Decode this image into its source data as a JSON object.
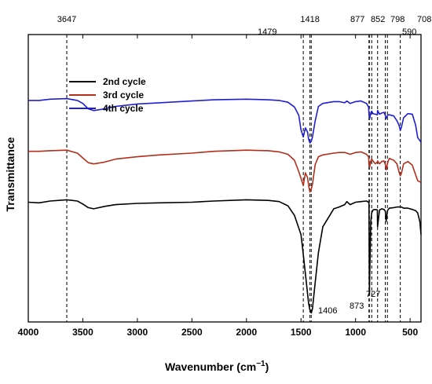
{
  "chart_data": {
    "type": "line",
    "xlabel": "Wavenumber (cm",
    "xlabel_sup": "−1",
    "xlabel_close": ")",
    "ylabel": "Transmittance",
    "xlim": [
      4000,
      400
    ],
    "x_reversed": true,
    "x_ticks": [
      4000,
      3500,
      3000,
      2500,
      2000,
      1500,
      1000,
      500
    ],
    "y_ticks_shown": false,
    "grid": false,
    "legend_position": "upper-left",
    "series": [
      {
        "name": "2nd cycle",
        "color": "#000000",
        "x": [
          4000,
          3900,
          3800,
          3647,
          3550,
          3500,
          3450,
          3400,
          3300,
          3200,
          3000,
          2800,
          2500,
          2300,
          2000,
          1800,
          1700,
          1620,
          1560,
          1500,
          1479,
          1450,
          1430,
          1418,
          1406,
          1395,
          1370,
          1340,
          1300,
          1200,
          1150,
          1100,
          1080,
          1050,
          1000,
          950,
          900,
          880,
          877,
          875,
          873,
          870,
          860,
          852,
          840,
          820,
          800,
          798,
          780,
          760,
          740,
          727,
          720,
          708,
          700,
          690,
          650,
          620,
          600,
          590,
          580,
          560,
          520,
          480,
          450,
          430,
          410,
          400
        ],
        "y": [
          90.0,
          89.9,
          90.2,
          90.4,
          90.2,
          89.7,
          89.1,
          88.9,
          89.3,
          89.6,
          89.8,
          89.9,
          90.0,
          90.2,
          90.4,
          90.3,
          90.1,
          89.4,
          87.8,
          84.6,
          81.3,
          76.4,
          73.1,
          72.0,
          71.5,
          72.2,
          76.6,
          81.6,
          85.9,
          88.9,
          89.2,
          89.6,
          90.1,
          89.6,
          90.0,
          90.1,
          90.2,
          90.0,
          89.7,
          82.9,
          74.6,
          78.0,
          86.8,
          88.2,
          88.7,
          88.8,
          88.7,
          85.9,
          88.7,
          88.9,
          88.8,
          88.5,
          86.8,
          88.5,
          88.8,
          89.0,
          89.1,
          89.2,
          89.2,
          89.2,
          89.2,
          89.0,
          89.0,
          88.8,
          88.6,
          88.2,
          86.7,
          84.6
        ]
      },
      {
        "name": "3rd cycle",
        "color": "#b22f1c",
        "x": [
          4000,
          3900,
          3800,
          3647,
          3550,
          3500,
          3450,
          3400,
          3300,
          3200,
          3000,
          2800,
          2500,
          2300,
          2000,
          1800,
          1700,
          1620,
          1560,
          1520,
          1500,
          1479,
          1460,
          1440,
          1430,
          1418,
          1406,
          1395,
          1370,
          1340,
          1300,
          1200,
          1150,
          1100,
          1080,
          1050,
          1000,
          950,
          900,
          880,
          877,
          870,
          860,
          852,
          840,
          820,
          800,
          798,
          780,
          760,
          740,
          727,
          720,
          708,
          700,
          690,
          650,
          620,
          600,
          590,
          580,
          560,
          520,
          480,
          450,
          430,
          410,
          400
        ],
        "y": [
          98.5,
          98.5,
          98.6,
          98.7,
          98.2,
          97.4,
          96.6,
          96.4,
          96.7,
          97.2,
          97.6,
          97.9,
          98.2,
          98.5,
          98.7,
          98.6,
          98.4,
          98.0,
          97.0,
          95.1,
          94.0,
          92.8,
          94.9,
          94.1,
          92.8,
          91.7,
          92.2,
          93.0,
          96.3,
          97.6,
          97.9,
          98.2,
          98.3,
          98.3,
          98.2,
          98.0,
          98.3,
          98.4,
          98.0,
          97.6,
          96.1,
          95.9,
          96.9,
          97.2,
          96.9,
          96.4,
          96.7,
          96.9,
          96.4,
          96.8,
          96.9,
          96.3,
          95.4,
          96.4,
          96.9,
          97.3,
          97.0,
          96.4,
          95.0,
          94.4,
          94.8,
          96.4,
          96.8,
          96.2,
          94.6,
          93.6,
          93.4,
          93.3
        ]
      },
      {
        "name": "4th cycle",
        "color": "#1f1fd0",
        "x": [
          4000,
          3900,
          3800,
          3647,
          3550,
          3500,
          3450,
          3400,
          3300,
          3200,
          3000,
          2800,
          2500,
          2300,
          2000,
          1800,
          1700,
          1620,
          1560,
          1520,
          1500,
          1479,
          1460,
          1440,
          1430,
          1418,
          1406,
          1395,
          1370,
          1340,
          1300,
          1200,
          1150,
          1100,
          1080,
          1050,
          1000,
          950,
          900,
          880,
          877,
          870,
          860,
          852,
          840,
          820,
          800,
          798,
          780,
          760,
          740,
          727,
          720,
          708,
          700,
          690,
          650,
          620,
          600,
          590,
          580,
          560,
          520,
          480,
          450,
          430,
          410,
          400
        ],
        "y": [
          107.0,
          107.0,
          107.2,
          107.3,
          107.0,
          106.5,
          105.6,
          105.3,
          105.6,
          106.0,
          106.4,
          106.6,
          106.9,
          107.1,
          107.2,
          107.1,
          107.0,
          106.7,
          105.9,
          104.5,
          102.1,
          100.9,
          102.4,
          101.7,
          100.5,
          99.9,
          100.2,
          100.9,
          103.6,
          106.0,
          106.5,
          106.8,
          106.8,
          106.6,
          106.9,
          106.5,
          106.8,
          106.9,
          106.5,
          105.9,
          104.5,
          104.0,
          104.9,
          105.2,
          104.8,
          104.7,
          104.6,
          105.3,
          104.7,
          104.9,
          105.0,
          104.5,
          104.0,
          104.4,
          104.6,
          104.6,
          104.4,
          103.6,
          102.8,
          102.0,
          102.5,
          104.1,
          104.8,
          104.7,
          102.9,
          100.8,
          100.3,
          100.0
        ]
      }
    ],
    "annotations": [
      {
        "label": "3647",
        "x": 3647
      },
      {
        "label": "1479",
        "x": 1479
      },
      {
        "label": "1418",
        "x": 1418
      },
      {
        "label": "877",
        "x": 877
      },
      {
        "label": "852",
        "x": 852
      },
      {
        "label": "798",
        "x": 798
      },
      {
        "label": "708",
        "x": 708
      },
      {
        "label": "590",
        "x": 590
      },
      {
        "label": "727",
        "x": 727
      },
      {
        "label": "1406",
        "x": 1406
      },
      {
        "label": "873",
        "x": 873
      }
    ]
  }
}
